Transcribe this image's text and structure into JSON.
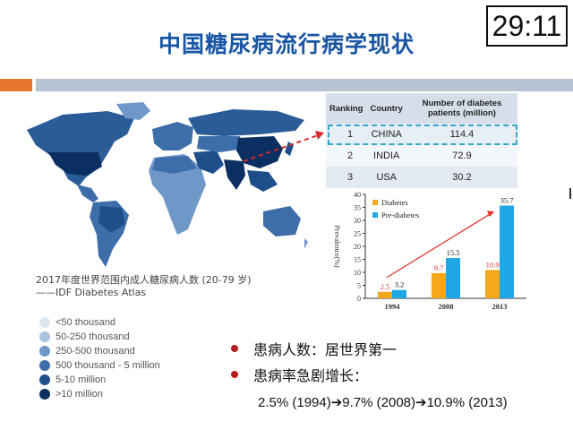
{
  "timer": "29:11",
  "title": "中国糖尿病流行病学现状",
  "map": {
    "caption_line1": "2017年度世界范围内成人糖尿病人数 (20-79 岁)",
    "caption_line2": "——IDF Diabetes Atlas",
    "legend": [
      {
        "label": "<50 thousand",
        "color": "#dde6f1"
      },
      {
        "label": "50-250 thousand",
        "color": "#a9c2e0"
      },
      {
        "label": "250-500 thousand",
        "color": "#6f98c9"
      },
      {
        "label": "500 thousand - 5 million",
        "color": "#3e6eaa"
      },
      {
        "label": "5-10 million",
        "color": "#1f4f8a"
      },
      {
        "label": ">10 million",
        "color": "#0c2f61"
      }
    ]
  },
  "table": {
    "headers": [
      "Ranking",
      "Country",
      "Number of diabetes patients (million)"
    ],
    "rows": [
      {
        "rank": "1",
        "country": "CHINA",
        "value": "114.4"
      },
      {
        "rank": "2",
        "country": "INDIA",
        "value": "72.9"
      },
      {
        "rank": "3",
        "country": "USA",
        "value": "30.2"
      }
    ]
  },
  "chart_data": {
    "type": "bar",
    "categories": [
      "1994",
      "2008",
      "2013"
    ],
    "series": [
      {
        "name": "Diabetes",
        "values": [
          2.5,
          9.7,
          10.9
        ],
        "color": "#f5a81c"
      },
      {
        "name": "Pre-diabetes",
        "values": [
          3.2,
          15.5,
          35.7
        ],
        "color": "#1ea8e6"
      }
    ],
    "ylabel": "Prevalence(%)",
    "ylim": [
      0,
      40
    ],
    "yticks": [
      0,
      5,
      10,
      15,
      20,
      25,
      30,
      35,
      40
    ],
    "legend_position": "top-left",
    "trend_arrow_color": "#e0332d"
  },
  "bullets": [
    {
      "text": "患病人数：居世界第一"
    },
    {
      "text": "患病率急剧增长："
    }
  ],
  "growth_text": "2.5% (1994)➔9.7% (2008)➔10.9% (2013)",
  "colors": {
    "title": "#1a56a4",
    "accent_orange": "#e8772e",
    "bullet": "#b21f1f"
  }
}
